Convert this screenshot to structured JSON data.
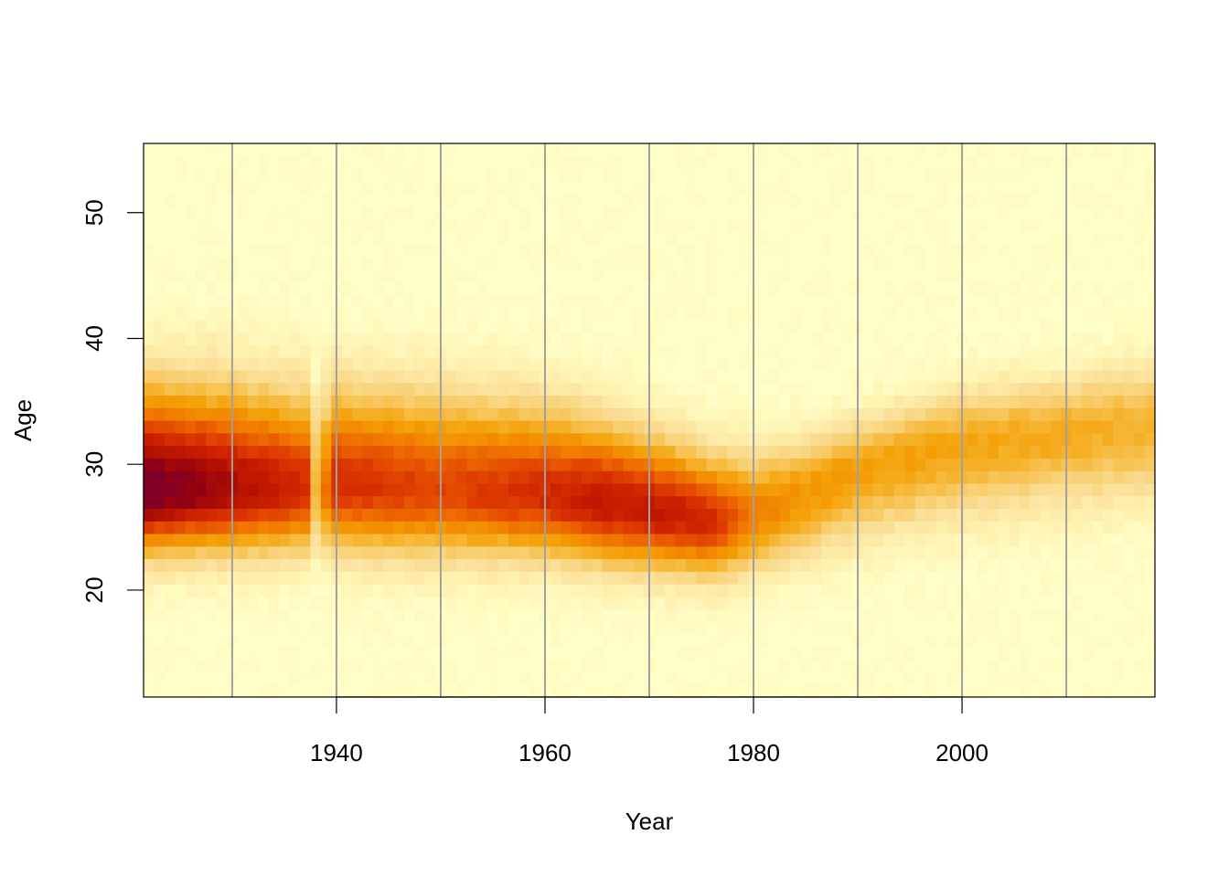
{
  "chart_data": {
    "type": "heatmap",
    "title": "",
    "xlabel": "Year",
    "ylabel": "Age",
    "xlim": [
      1921.5,
      2018.5
    ],
    "ylim": [
      11.5,
      55.5
    ],
    "x_ticks": [
      1940,
      1960,
      1980,
      2000
    ],
    "y_ticks": [
      20,
      30,
      40,
      50
    ],
    "x_tick_labels": [
      "1940",
      "1960",
      "1980",
      "2000"
    ],
    "y_tick_labels": [
      "20",
      "30",
      "40",
      "50"
    ],
    "decade_gridlines": [
      1930,
      1940,
      1950,
      1960,
      1970,
      1980,
      1990,
      2000,
      2010
    ],
    "gridline_color": "#a0a0a0",
    "colormap": "heat (dark red = high, pale yellow = low)",
    "color_scale": [
      "#ffffc8",
      "#fff1b0",
      "#fbe09a",
      "#f8cf72",
      "#f6b93a",
      "#f4a007",
      "#f28400",
      "#ec6300",
      "#df3e00",
      "#cc2000",
      "#b31100",
      "#8e0014",
      "#7a0030"
    ],
    "year_range": [
      1922,
      2018
    ],
    "age_range": [
      12,
      55
    ],
    "peak_profile": {
      "years": [
        1922,
        1930,
        1937,
        1938,
        1940,
        1950,
        1960,
        1965,
        1972,
        1976,
        1980,
        1985,
        1990,
        2000,
        2010,
        2018
      ],
      "peak_age": [
        28,
        28,
        28,
        28,
        28.5,
        28,
        27.5,
        27,
        26,
        25.5,
        26,
        27.5,
        29.5,
        31.5,
        32.5,
        33
      ],
      "peak_level": [
        1.0,
        0.85,
        0.72,
        0.35,
        0.72,
        0.65,
        0.72,
        0.78,
        0.78,
        0.72,
        0.52,
        0.45,
        0.43,
        0.4,
        0.38,
        0.36
      ],
      "spread_low": [
        5.5,
        5.5,
        5.5,
        5.5,
        6,
        6,
        5.5,
        5.5,
        5,
        5,
        5,
        5.5,
        6,
        6.5,
        6.5,
        6.5
      ],
      "spread_high": [
        9,
        9,
        8.5,
        8,
        8.5,
        8.5,
        8,
        7.5,
        6.5,
        6,
        5.5,
        5,
        4.5,
        5,
        5,
        5.5
      ]
    }
  }
}
